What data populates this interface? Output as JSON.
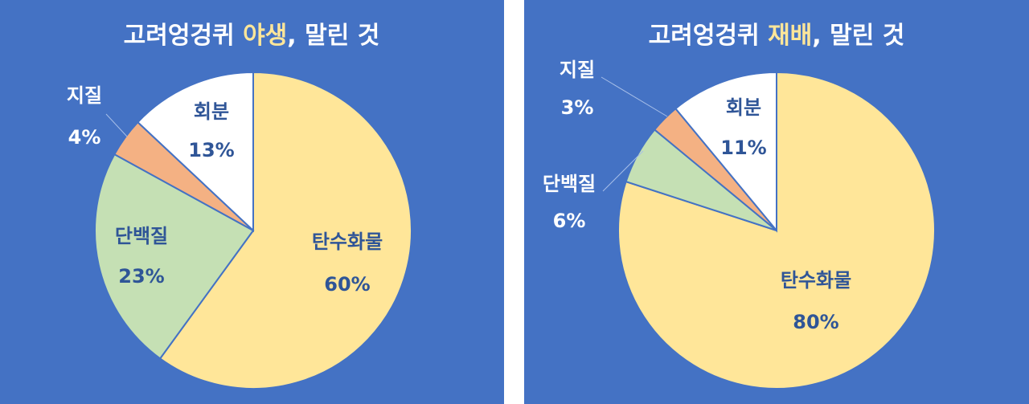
{
  "chart_data": [
    {
      "type": "pie",
      "title": [
        "고려엉겅퀴 ",
        "야생",
        ", 말린 것"
      ],
      "categories": [
        "탄수화물",
        "단백질",
        "지질",
        "회분"
      ],
      "values": [
        60,
        23,
        4,
        13
      ],
      "value_labels": [
        "60%",
        "23%",
        "4%",
        "13%"
      ],
      "colors": [
        "#FFE699",
        "#C5E0B4",
        "#F4B183",
        "#FFFFFF"
      ]
    },
    {
      "type": "pie",
      "title": [
        "고려엉겅퀴 ",
        "재배",
        ", 말린 것"
      ],
      "categories": [
        "탄수화물",
        "단백질",
        "지질",
        "회분"
      ],
      "values": [
        80,
        6,
        3,
        11
      ],
      "value_labels": [
        "80%",
        "6%",
        "3%",
        "11%"
      ],
      "colors": [
        "#FFE699",
        "#C5E0B4",
        "#F4B183",
        "#FFFFFF"
      ]
    }
  ]
}
